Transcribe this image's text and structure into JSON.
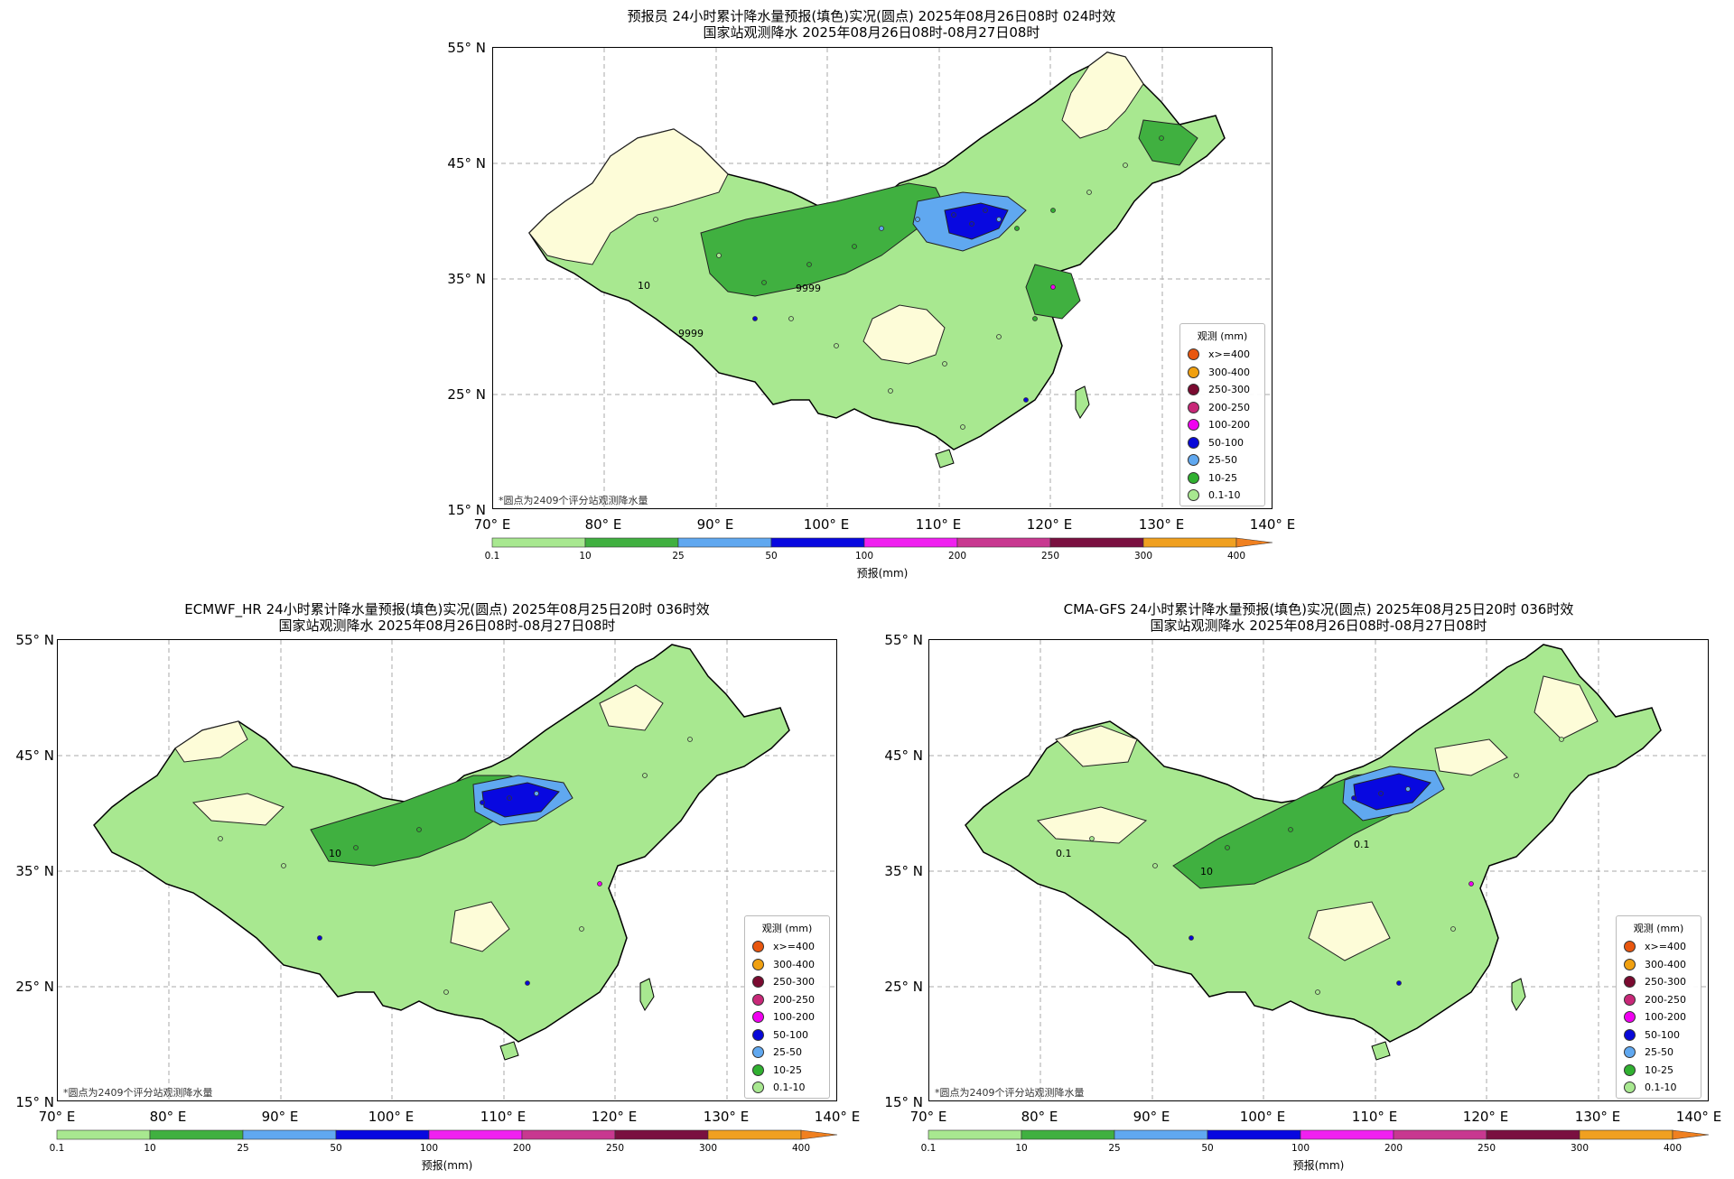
{
  "panels": [
    {
      "id": "forecaster",
      "title_line1": "预报员 24小时累计降水量预报(填色)实况(圆点) 2025年08月26日08时 024时效",
      "title_line2": "国家站观测降水 2025年08月26日08时-08月27日08时"
    },
    {
      "id": "ecmwf",
      "title_line1": "ECMWF_HR 24小时累计降水量预报(填色)实况(圆点) 2025年08月25日20时 036时效",
      "title_line2": "国家站观测降水 2025年08月26日08时-08月27日08时"
    },
    {
      "id": "cmagfs",
      "title_line1": "CMA-GFS 24小时累计降水量预报(填色)实况(圆点) 2025年08月25日20时 036时效",
      "title_line2": "国家站观测降水 2025年08月26日08时-08月27日08时"
    }
  ],
  "lat_ticks": [
    "55° N",
    "45° N",
    "35° N",
    "25° N",
    "15° N"
  ],
  "lon_ticks": [
    "70° E",
    "80° E",
    "90° E",
    "100° E",
    "110° E",
    "120° E",
    "130° E",
    "140° E"
  ],
  "note": "*圆点为2409个评分站观测降水量",
  "legend": {
    "title": "观测 (mm)",
    "items": [
      {
        "label": "x>=400",
        "color": "#e8560f"
      },
      {
        "label": "300-400",
        "color": "#f0a010"
      },
      {
        "label": "250-300",
        "color": "#7a0a30"
      },
      {
        "label": "200-250",
        "color": "#c82878"
      },
      {
        "label": "100-200",
        "color": "#f000f0"
      },
      {
        "label": "50-100",
        "color": "#0808d8"
      },
      {
        "label": "25-50",
        "color": "#60a8f0"
      },
      {
        "label": "10-25",
        "color": "#30b030"
      },
      {
        "label": "0.1-10",
        "color": "#a8e890"
      }
    ]
  },
  "colorbar": {
    "label": "预报(mm)",
    "ticks": [
      "0.1",
      "10",
      "25",
      "50",
      "100",
      "200",
      "250",
      "300",
      "400"
    ],
    "colors": [
      "#a8e890",
      "#40b040",
      "#60a8f0",
      "#0808e0",
      "#f020f0",
      "#c83890",
      "#7a1040",
      "#f0a020"
    ]
  },
  "contour_labels": [
    "10",
    "9999",
    "0.1"
  ],
  "map_colors": {
    "land_dry": "#fdfcd8",
    "light_rain": "#a8e890",
    "moderate": "#40b040",
    "heavy": "#60a8f0",
    "rainstorm": "#0808e0",
    "grid": "#aaaaaa",
    "water": "#8ab4d8"
  }
}
